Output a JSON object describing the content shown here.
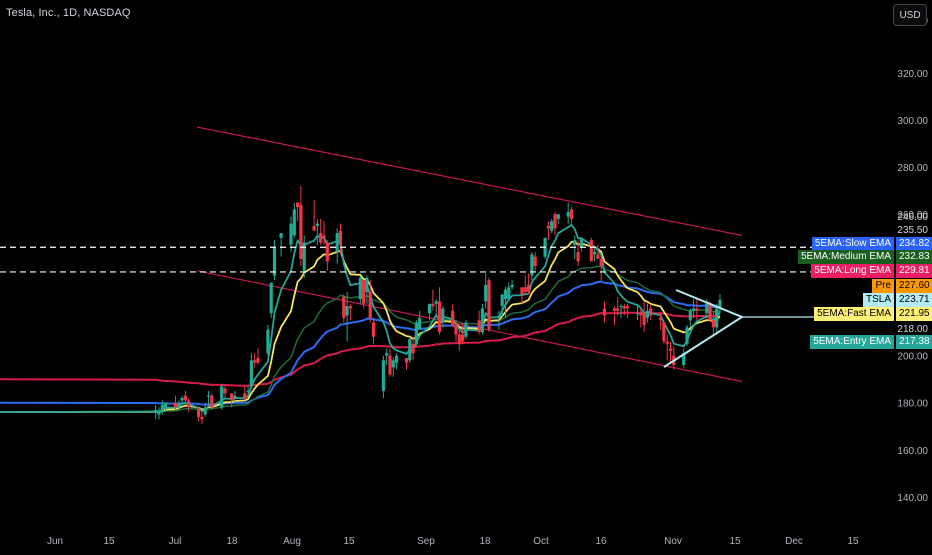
{
  "header": {
    "symbol_title": "Tesla, Inc., 1D, NASDAQ",
    "currency_button": "USD"
  },
  "price_axis": {
    "ticks": [
      "320.00",
      "300.00",
      "280.00",
      "260.00",
      "240.00",
      "220.00",
      "200.00",
      "180.00",
      "160.00",
      "140.00"
    ],
    "top_partial": "340.00",
    "extra_labels": [
      "246.00",
      "235.50",
      "218.00"
    ]
  },
  "time_axis": {
    "ticks": [
      "Jun",
      "15",
      "Jul",
      "18",
      "Aug",
      "15",
      "Sep",
      "18",
      "Oct",
      "16",
      "Nov",
      "15",
      "Dec",
      "15"
    ]
  },
  "tags": [
    {
      "name": "5EMA:Slow EMA",
      "value": "234.82",
      "color": "#2962ff"
    },
    {
      "name": "5EMA:Medium EMA",
      "value": "232.83",
      "color": "#1b5e20"
    },
    {
      "name": "5EMA:Long EMA",
      "value": "229.81",
      "color": "#e91e63"
    },
    {
      "name": "Pre",
      "value": "227.60",
      "color": "#ff9800"
    },
    {
      "name": "TSLA",
      "value": "223.71",
      "color": "#b2ebf2"
    },
    {
      "name": "5EMA:Fast EMA",
      "value": "221.95",
      "color": "#fff176"
    },
    {
      "name": "5EMA:Entry EMA",
      "value": "217.38",
      "color": "#26a69a"
    }
  ],
  "colors": {
    "up": "#22ab94",
    "down": "#f23645",
    "entry_ema": "#26a69a",
    "fast_ema": "#f7e45d",
    "medium_ema": "#1f6b3a",
    "slow_ema": "#2f6bf0",
    "long_ema": "#d81b4a",
    "channel": "#c2185b",
    "triangle": "#b2ebf2",
    "dashed": "#ffffff"
  },
  "chart_data": {
    "type": "candlestick",
    "title": "Tesla, Inc., 1D, NASDAQ",
    "ylim": [
      130,
      345
    ],
    "x_ticks": [
      "Jun",
      "15",
      "Jul",
      "18",
      "Aug",
      "15",
      "Sep",
      "18",
      "Oct",
      "16",
      "Nov",
      "15",
      "Dec",
      "15"
    ],
    "y_ticks": [
      140,
      160,
      180,
      200,
      220,
      240,
      260,
      280,
      300,
      320
    ],
    "grid": false,
    "candles": [
      {
        "date": "2024-05-28",
        "o": 176,
        "h": 179,
        "l": 173,
        "c": 177
      },
      {
        "date": "2024-05-29",
        "o": 175,
        "h": 178,
        "l": 173,
        "c": 176
      },
      {
        "date": "2024-05-30",
        "o": 176,
        "h": 181,
        "l": 175,
        "c": 179
      },
      {
        "date": "2024-05-31",
        "o": 178,
        "h": 180,
        "l": 176,
        "c": 180
      },
      {
        "date": "2024-06-03",
        "o": 180,
        "h": 183,
        "l": 177,
        "c": 178
      },
      {
        "date": "2024-06-04",
        "o": 178,
        "h": 181,
        "l": 177,
        "c": 180
      },
      {
        "date": "2024-06-05",
        "o": 181,
        "h": 183,
        "l": 179,
        "c": 182
      },
      {
        "date": "2024-06-06",
        "o": 183,
        "h": 185,
        "l": 180,
        "c": 181
      },
      {
        "date": "2024-06-07",
        "o": 181,
        "h": 182,
        "l": 176,
        "c": 178
      },
      {
        "date": "2024-06-10",
        "o": 177,
        "h": 178,
        "l": 172,
        "c": 174
      },
      {
        "date": "2024-06-11",
        "o": 174,
        "h": 176,
        "l": 171,
        "c": 173
      },
      {
        "date": "2024-06-12",
        "o": 175,
        "h": 180,
        "l": 174,
        "c": 178
      },
      {
        "date": "2024-06-13",
        "o": 183,
        "h": 185,
        "l": 179,
        "c": 183
      },
      {
        "date": "2024-06-14",
        "o": 183,
        "h": 184,
        "l": 177,
        "c": 178
      },
      {
        "date": "2024-06-17",
        "o": 178,
        "h": 188,
        "l": 177,
        "c": 187
      },
      {
        "date": "2024-06-18",
        "o": 186,
        "h": 187,
        "l": 182,
        "c": 184
      },
      {
        "date": "2024-06-20",
        "o": 184,
        "h": 184,
        "l": 178,
        "c": 181
      },
      {
        "date": "2024-06-21",
        "o": 182,
        "h": 185,
        "l": 180,
        "c": 183
      },
      {
        "date": "2024-06-24",
        "o": 184,
        "h": 187,
        "l": 181,
        "c": 182
      },
      {
        "date": "2024-06-25",
        "o": 185,
        "h": 187,
        "l": 183,
        "c": 185
      },
      {
        "date": "2024-06-26",
        "o": 187,
        "h": 201,
        "l": 186,
        "c": 198
      },
      {
        "date": "2024-06-27",
        "o": 198,
        "h": 201,
        "l": 195,
        "c": 197
      },
      {
        "date": "2024-06-28",
        "o": 199,
        "h": 203,
        "l": 196,
        "c": 197
      },
      {
        "date": "2024-07-01",
        "o": 201,
        "h": 213,
        "l": 200,
        "c": 211
      },
      {
        "date": "2024-07-02",
        "o": 218,
        "h": 231,
        "l": 216,
        "c": 231
      },
      {
        "date": "2024-07-03",
        "o": 234,
        "h": 249,
        "l": 232,
        "c": 246
      },
      {
        "date": "2024-07-05",
        "o": 250,
        "h": 252,
        "l": 242,
        "c": 252
      },
      {
        "date": "2024-07-08",
        "o": 247,
        "h": 259,
        "l": 244,
        "c": 256
      },
      {
        "date": "2024-07-09",
        "o": 251,
        "h": 265,
        "l": 250,
        "c": 262
      },
      {
        "date": "2024-07-10",
        "o": 265,
        "h": 265,
        "l": 257,
        "c": 263
      },
      {
        "date": "2024-07-11",
        "o": 264,
        "h": 272,
        "l": 238,
        "c": 241
      },
      {
        "date": "2024-07-12",
        "o": 236,
        "h": 251,
        "l": 233,
        "c": 248
      },
      {
        "date": "2024-07-15",
        "o": 255,
        "h": 266,
        "l": 254,
        "c": 253
      },
      {
        "date": "2024-07-16",
        "o": 255,
        "h": 258,
        "l": 247,
        "c": 256
      },
      {
        "date": "2024-07-17",
        "o": 252,
        "h": 258,
        "l": 247,
        "c": 248
      },
      {
        "date": "2024-07-18",
        "o": 251,
        "h": 257,
        "l": 247,
        "c": 250
      },
      {
        "date": "2024-07-19",
        "o": 248,
        "h": 249,
        "l": 236,
        "c": 240
      },
      {
        "date": "2024-07-22",
        "o": 244,
        "h": 254,
        "l": 239,
        "c": 252
      },
      {
        "date": "2024-07-23",
        "o": 253,
        "h": 256,
        "l": 243,
        "c": 247
      },
      {
        "date": "2024-07-24",
        "o": 225,
        "h": 226,
        "l": 214,
        "c": 216
      },
      {
        "date": "2024-07-25",
        "o": 217,
        "h": 227,
        "l": 206,
        "c": 221
      },
      {
        "date": "2024-07-26",
        "o": 221,
        "h": 222,
        "l": 215,
        "c": 220
      },
      {
        "date": "2024-07-29",
        "o": 224,
        "h": 234,
        "l": 222,
        "c": 233
      },
      {
        "date": "2024-07-30",
        "o": 232,
        "h": 232,
        "l": 220,
        "c": 222
      },
      {
        "date": "2024-07-31",
        "o": 227,
        "h": 234,
        "l": 222,
        "c": 233
      },
      {
        "date": "2024-08-01",
        "o": 227,
        "h": 232,
        "l": 214,
        "c": 216
      },
      {
        "date": "2024-08-02",
        "o": 214,
        "h": 216,
        "l": 205,
        "c": 208
      },
      {
        "date": "2024-08-05",
        "o": 185,
        "h": 200,
        "l": 182,
        "c": 198
      },
      {
        "date": "2024-08-06",
        "o": 200,
        "h": 203,
        "l": 196,
        "c": 201
      },
      {
        "date": "2024-08-07",
        "o": 200,
        "h": 203,
        "l": 191,
        "c": 192
      },
      {
        "date": "2024-08-08",
        "o": 195,
        "h": 199,
        "l": 191,
        "c": 198
      },
      {
        "date": "2024-08-09",
        "o": 197,
        "h": 201,
        "l": 194,
        "c": 200
      },
      {
        "date": "2024-08-12",
        "o": 199,
        "h": 199,
        "l": 194,
        "c": 197
      },
      {
        "date": "2024-08-13",
        "o": 198,
        "h": 208,
        "l": 197,
        "c": 207
      },
      {
        "date": "2024-08-14",
        "o": 205,
        "h": 208,
        "l": 198,
        "c": 201
      },
      {
        "date": "2024-08-15",
        "o": 205,
        "h": 215,
        "l": 204,
        "c": 214
      },
      {
        "date": "2024-08-16",
        "o": 211,
        "h": 219,
        "l": 211,
        "c": 216
      },
      {
        "date": "2024-08-19",
        "o": 218,
        "h": 222,
        "l": 215,
        "c": 222
      },
      {
        "date": "2024-08-20",
        "o": 222,
        "h": 228,
        "l": 219,
        "c": 221
      },
      {
        "date": "2024-08-21",
        "o": 222,
        "h": 224,
        "l": 217,
        "c": 223
      },
      {
        "date": "2024-08-22",
        "o": 223,
        "h": 229,
        "l": 209,
        "c": 210
      },
      {
        "date": "2024-08-23",
        "o": 214,
        "h": 221,
        "l": 212,
        "c": 220
      },
      {
        "date": "2024-08-26",
        "o": 219,
        "h": 222,
        "l": 212,
        "c": 213
      },
      {
        "date": "2024-08-27",
        "o": 213,
        "h": 215,
        "l": 206,
        "c": 209
      },
      {
        "date": "2024-08-28",
        "o": 209,
        "h": 211,
        "l": 202,
        "c": 205
      },
      {
        "date": "2024-08-29",
        "o": 209,
        "h": 214,
        "l": 205,
        "c": 206
      },
      {
        "date": "2024-08-30",
        "o": 208,
        "h": 215,
        "l": 207,
        "c": 214
      },
      {
        "date": "2024-09-03",
        "o": 215,
        "h": 219,
        "l": 209,
        "c": 210
      },
      {
        "date": "2024-09-04",
        "o": 210,
        "h": 222,
        "l": 209,
        "c": 220
      },
      {
        "date": "2024-09-05",
        "o": 223,
        "h": 235,
        "l": 220,
        "c": 230
      },
      {
        "date": "2024-09-06",
        "o": 232,
        "h": 233,
        "l": 210,
        "c": 211
      },
      {
        "date": "2024-09-09",
        "o": 216,
        "h": 219,
        "l": 211,
        "c": 217
      },
      {
        "date": "2024-09-10",
        "o": 221,
        "h": 226,
        "l": 217,
        "c": 226
      },
      {
        "date": "2024-09-11",
        "o": 224,
        "h": 229,
        "l": 216,
        "c": 228
      },
      {
        "date": "2024-09-12",
        "o": 224,
        "h": 231,
        "l": 223,
        "c": 229
      },
      {
        "date": "2024-09-13",
        "o": 229,
        "h": 232,
        "l": 228,
        "c": 230
      },
      {
        "date": "2024-09-16",
        "o": 229,
        "h": 229,
        "l": 222,
        "c": 226
      },
      {
        "date": "2024-09-17",
        "o": 229,
        "h": 234,
        "l": 226,
        "c": 227
      },
      {
        "date": "2024-09-18",
        "o": 230,
        "h": 235,
        "l": 226,
        "c": 227
      },
      {
        "date": "2024-09-19",
        "o": 234,
        "h": 244,
        "l": 232,
        "c": 243
      },
      {
        "date": "2024-09-20",
        "o": 242,
        "h": 244,
        "l": 236,
        "c": 238
      },
      {
        "date": "2024-09-23",
        "o": 242,
        "h": 250,
        "l": 241,
        "c": 250
      },
      {
        "date": "2024-09-24",
        "o": 255,
        "h": 257,
        "l": 249,
        "c": 254
      },
      {
        "date": "2024-09-25",
        "o": 253,
        "h": 258,
        "l": 252,
        "c": 257
      },
      {
        "date": "2024-09-26",
        "o": 260,
        "h": 261,
        "l": 251,
        "c": 254
      },
      {
        "date": "2024-09-27",
        "o": 258,
        "h": 260,
        "l": 256,
        "c": 260
      },
      {
        "date": "2024-09-30",
        "o": 259,
        "h": 265,
        "l": 256,
        "c": 261
      },
      {
        "date": "2024-10-01",
        "o": 262,
        "h": 263,
        "l": 256,
        "c": 258
      },
      {
        "date": "2024-10-02",
        "o": 247,
        "h": 251,
        "l": 241,
        "c": 249
      },
      {
        "date": "2024-10-03",
        "o": 244,
        "h": 249,
        "l": 238,
        "c": 240
      },
      {
        "date": "2024-10-04",
        "o": 246,
        "h": 250,
        "l": 244,
        "c": 250
      },
      {
        "date": "2024-10-07",
        "o": 249,
        "h": 250,
        "l": 240,
        "c": 240
      },
      {
        "date": "2024-10-08",
        "o": 243,
        "h": 246,
        "l": 240,
        "c": 244
      },
      {
        "date": "2024-10-09",
        "o": 243,
        "h": 247,
        "l": 242,
        "c": 241
      },
      {
        "date": "2024-10-10",
        "o": 241,
        "h": 242,
        "l": 232,
        "c": 238
      },
      {
        "date": "2024-10-11",
        "o": 220,
        "h": 223,
        "l": 214,
        "c": 217
      },
      {
        "date": "2024-10-14",
        "o": 220,
        "h": 221,
        "l": 213,
        "c": 219
      },
      {
        "date": "2024-10-15",
        "o": 220,
        "h": 225,
        "l": 217,
        "c": 219
      },
      {
        "date": "2024-10-16",
        "o": 221,
        "h": 222,
        "l": 216,
        "c": 221
      },
      {
        "date": "2024-10-17",
        "o": 221,
        "h": 222,
        "l": 217,
        "c": 220
      },
      {
        "date": "2024-10-18",
        "o": 221,
        "h": 222,
        "l": 216,
        "c": 220
      },
      {
        "date": "2024-10-21",
        "o": 218,
        "h": 222,
        "l": 215,
        "c": 218
      },
      {
        "date": "2024-10-22",
        "o": 218,
        "h": 220,
        "l": 212,
        "c": 217
      },
      {
        "date": "2024-10-23",
        "o": 218,
        "h": 223,
        "l": 210,
        "c": 213
      },
      {
        "date": "2024-10-24",
        "o": 216,
        "h": 222,
        "l": 214,
        "c": 219
      },
      {
        "date": "2024-10-25",
        "o": 220,
        "h": 222,
        "l": 215,
        "c": 217
      },
      {
        "date": "2024-10-28",
        "o": 216,
        "h": 218,
        "l": 211,
        "c": 215
      },
      {
        "date": "2024-10-29",
        "o": 214,
        "h": 215,
        "l": 205,
        "c": 206
      },
      {
        "date": "2024-10-30",
        "o": 206,
        "h": 209,
        "l": 198,
        "c": 205
      },
      {
        "date": "2024-10-31",
        "o": 203,
        "h": 206,
        "l": 197,
        "c": 202
      },
      {
        "date": "2024-11-01",
        "o": 200,
        "h": 204,
        "l": 194,
        "c": 196
      },
      {
        "date": "2024-11-04",
        "o": 196,
        "h": 203,
        "l": 195,
        "c": 201
      },
      {
        "date": "2024-11-05",
        "o": 205,
        "h": 213,
        "l": 204,
        "c": 212
      },
      {
        "date": "2024-11-06",
        "o": 215,
        "h": 220,
        "l": 212,
        "c": 219
      },
      {
        "date": "2024-11-07",
        "o": 219,
        "h": 224,
        "l": 216,
        "c": 220
      },
      {
        "date": "2024-11-08",
        "o": 220,
        "h": 224,
        "l": 215,
        "c": 219
      },
      {
        "date": "2024-11-11",
        "o": 218,
        "h": 224,
        "l": 216,
        "c": 222
      },
      {
        "date": "2024-11-12",
        "o": 222,
        "h": 223,
        "l": 214,
        "c": 215
      },
      {
        "date": "2024-11-13",
        "o": 215,
        "h": 219,
        "l": 208,
        "c": 212
      },
      {
        "date": "2024-11-14",
        "o": 212,
        "h": 222,
        "l": 210,
        "c": 220
      },
      {
        "date": "2024-11-15",
        "o": 220,
        "h": 226,
        "l": 218,
        "c": 223.71
      }
    ]
  }
}
